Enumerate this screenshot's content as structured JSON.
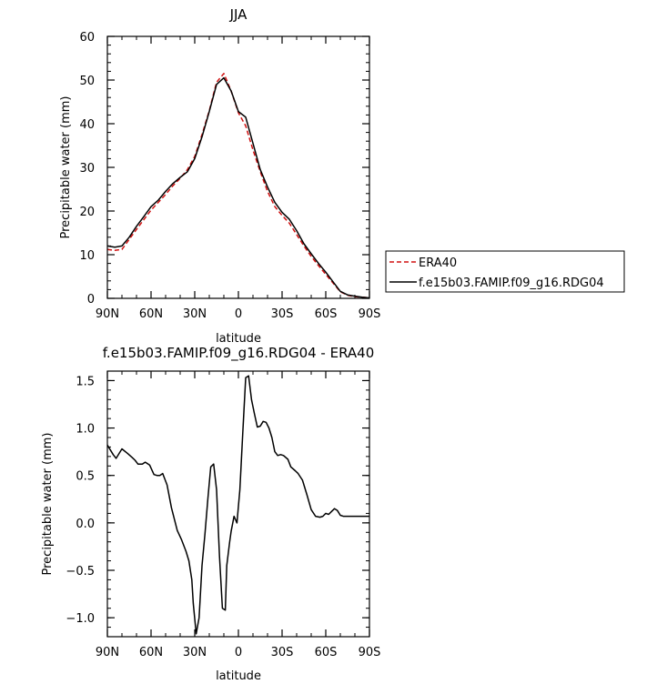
{
  "chart_data": [
    {
      "type": "line",
      "title": "JJA",
      "xlabel": "latitude",
      "ylabel": "Precipitable water (mm)",
      "xlim": [
        90,
        -90
      ],
      "ylim": [
        0,
        60
      ],
      "x_ticks": [
        90,
        60,
        30,
        0,
        -30,
        -60,
        -90
      ],
      "x_tick_labels": [
        "90N",
        "60N",
        "30N",
        "0",
        "30S",
        "60S",
        "90S"
      ],
      "y_ticks": [
        0,
        10,
        20,
        30,
        40,
        50,
        60
      ],
      "y_tick_labels": [
        "0",
        "10",
        "20",
        "30",
        "40",
        "50",
        "60"
      ],
      "grid": false,
      "legend_position": "right",
      "series": [
        {
          "name": "ERA40",
          "color": "#d01010",
          "style": "dashed",
          "x": [
            90,
            85,
            80,
            75,
            70,
            65,
            60,
            55,
            50,
            45,
            40,
            35,
            30,
            25,
            20,
            15,
            10,
            5,
            0,
            -5,
            -10,
            -15,
            -20,
            -25,
            -30,
            -35,
            -40,
            -45,
            -50,
            -55,
            -60,
            -65,
            -70,
            -75,
            -80,
            -85,
            -90
          ],
          "y": [
            11.2,
            11.0,
            11.2,
            13.5,
            15.8,
            18.0,
            20.2,
            22.0,
            23.8,
            25.8,
            27.5,
            29.5,
            32.5,
            37.5,
            43.0,
            49.5,
            51.5,
            47.5,
            42.5,
            39.5,
            34.0,
            29.0,
            24.5,
            21.0,
            19.0,
            17.2,
            14.6,
            12.0,
            9.6,
            7.5,
            5.5,
            3.5,
            1.5,
            0.7,
            0.4,
            0.25,
            0.15
          ]
        },
        {
          "name": "f.e15b03.FAMIP.f09_g16.RDG04",
          "color": "#000000",
          "style": "solid",
          "x": [
            90,
            85,
            80,
            75,
            70,
            65,
            60,
            55,
            50,
            45,
            40,
            35,
            30,
            25,
            20,
            15,
            10,
            5,
            0,
            -5,
            -10,
            -15,
            -20,
            -25,
            -30,
            -35,
            -40,
            -45,
            -50,
            -55,
            -60,
            -65,
            -70,
            -75,
            -80,
            -85,
            -90
          ],
          "y": [
            12.0,
            11.7,
            12.0,
            14.0,
            16.5,
            18.7,
            21.0,
            22.5,
            24.5,
            26.3,
            27.7,
            29.0,
            32.0,
            37.0,
            42.8,
            49.0,
            50.5,
            47.5,
            42.8,
            41.5,
            35.5,
            29.5,
            25.5,
            22.0,
            19.7,
            18.1,
            15.5,
            12.5,
            10.2,
            8.0,
            6.0,
            3.8,
            1.6,
            0.8,
            0.5,
            0.25,
            0.1
          ]
        }
      ]
    },
    {
      "type": "line",
      "title": "f.e15b03.FAMIP.f09_g16.RDG04 - ERA40",
      "xlabel": "latitude",
      "ylabel": "Precipitable water (mm)",
      "xlim": [
        90,
        -90
      ],
      "ylim": [
        -1.2,
        1.6
      ],
      "x_ticks": [
        90,
        60,
        30,
        0,
        -30,
        -60,
        -90
      ],
      "x_tick_labels": [
        "90N",
        "60N",
        "30N",
        "0",
        "30S",
        "60S",
        "90S"
      ],
      "y_ticks": [
        -1.0,
        -0.5,
        0.0,
        0.5,
        1.0,
        1.5
      ],
      "y_tick_labels": [
        "−1.0",
        "−0.5",
        "0.0",
        "0.5",
        "1.0",
        "1.5"
      ],
      "grid": false,
      "series": [
        {
          "color": "#000000",
          "style": "solid",
          "x": [
            90,
            86,
            84,
            80,
            76,
            73,
            71,
            69,
            66,
            64,
            61,
            58,
            56,
            54,
            52,
            49,
            46,
            42,
            39,
            36,
            34,
            32,
            31,
            29,
            27,
            25,
            23,
            21,
            19,
            17,
            15,
            13,
            11,
            9,
            8,
            6,
            5,
            3,
            1,
            -1,
            -3,
            -5,
            -7,
            -9,
            -11,
            -13,
            -15,
            -17,
            -19,
            -21,
            -23,
            -25,
            -27,
            -29,
            -31,
            -34,
            -36,
            -39,
            -41,
            -44,
            -47,
            -50,
            -53,
            -56,
            -58,
            -60,
            -62,
            -64,
            -66,
            -68,
            -70,
            -72,
            -74,
            -76,
            -78,
            -80,
            -82,
            -84,
            -86,
            -88,
            -90
          ],
          "y": [
            0.82,
            0.72,
            0.68,
            0.78,
            0.73,
            0.69,
            0.66,
            0.62,
            0.62,
            0.64,
            0.61,
            0.51,
            0.5,
            0.5,
            0.52,
            0.4,
            0.16,
            -0.08,
            -0.18,
            -0.3,
            -0.4,
            -0.6,
            -0.85,
            -1.17,
            -1.0,
            -0.45,
            -0.12,
            0.25,
            0.59,
            0.62,
            0.35,
            -0.35,
            -0.9,
            -0.92,
            -0.45,
            -0.2,
            -0.09,
            0.07,
            0.0,
            0.35,
            0.95,
            1.53,
            1.55,
            1.3,
            1.15,
            1.01,
            1.02,
            1.07,
            1.06,
            1.0,
            0.9,
            0.75,
            0.71,
            0.72,
            0.71,
            0.67,
            0.59,
            0.55,
            0.52,
            0.45,
            0.3,
            0.14,
            0.07,
            0.06,
            0.07,
            0.1,
            0.09,
            0.12,
            0.15,
            0.13,
            0.08,
            0.07,
            0.07,
            0.07,
            0.07,
            0.07,
            0.07,
            0.07,
            0.07,
            0.07,
            0.07
          ]
        }
      ]
    }
  ]
}
